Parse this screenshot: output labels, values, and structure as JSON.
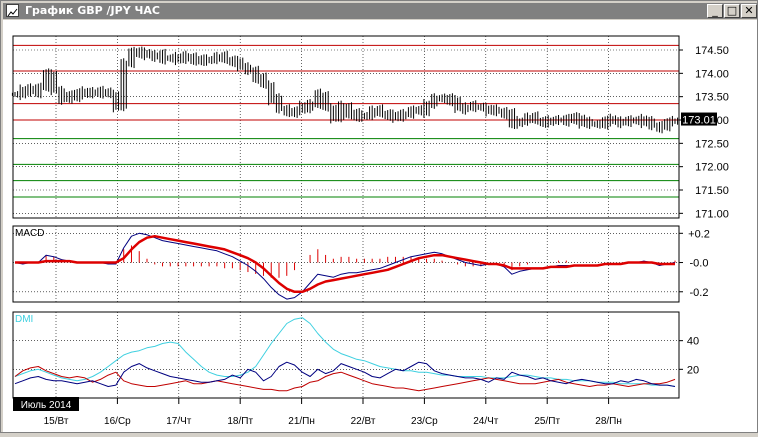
{
  "window": {
    "title": "График GBP /JPY ЧАС",
    "buttons": {
      "minimize": "_",
      "maximize": "□",
      "close": "✕"
    }
  },
  "colors": {
    "background": "#ffffff",
    "price_bars": "#000000",
    "resistance": "#c00000",
    "support": "#008000",
    "macd": "#000080",
    "macd_signal": "#dd0000",
    "dmi_adx": "#3fd0e0",
    "dmi_plus": "#000080",
    "dmi_minus": "#c00000",
    "price_marker": "#000000"
  },
  "chart_data": [
    {
      "type": "line",
      "panel": "price",
      "title": "",
      "y_ticks": [
        "174.50",
        "174.00",
        "173.50",
        "173.00",
        "172.50",
        "172.00",
        "171.50",
        "171.00"
      ],
      "ylim": [
        170.9,
        174.8
      ],
      "last_price": "173.01",
      "horizontal_levels": {
        "red": [
          174.6,
          174.05,
          173.35,
          173.0
        ],
        "green": [
          172.6,
          172.05,
          171.7,
          171.35
        ]
      },
      "series": [
        {
          "values": [
            173.55,
            173.65,
            173.6,
            173.7,
            174.0,
            173.62,
            173.45,
            173.5,
            173.6,
            173.55,
            173.62,
            173.58,
            173.55,
            173.3,
            174.2,
            174.48,
            174.42,
            174.38,
            174.4,
            174.3,
            174.35,
            174.3,
            174.35,
            174.3,
            174.25,
            174.32,
            174.35,
            174.3,
            174.25,
            174.15,
            174.05,
            173.9,
            173.75,
            173.45,
            173.25,
            173.15,
            173.2,
            173.28,
            173.35,
            173.55,
            173.25,
            173.05,
            173.28,
            173.15,
            173.05,
            173.12,
            173.2,
            173.15,
            173.1,
            173.05,
            173.15,
            173.2,
            173.18,
            173.35,
            173.45,
            173.48,
            173.4,
            173.25,
            173.28,
            173.3,
            173.25,
            173.2,
            173.18,
            173.15,
            172.9,
            173.0,
            173.05,
            173.0,
            172.95,
            172.98,
            173.02,
            172.98,
            173.05,
            172.95,
            172.92,
            172.9,
            173.0,
            172.96,
            172.98,
            172.96,
            173.02,
            172.95,
            172.88,
            172.85,
            172.95,
            173.0
          ]
        }
      ]
    },
    {
      "type": "line",
      "panel": "macd",
      "title": "MACD",
      "y_ticks": [
        "+0.2",
        "-0.0",
        "-0.2"
      ],
      "ylim": [
        -0.27,
        0.25
      ],
      "series": [
        {
          "values": [
            0.0,
            -0.01,
            0.0,
            0.0,
            0.05,
            0.04,
            0.02,
            0.01,
            0.0,
            0.0,
            0.0,
            0.0,
            -0.01,
            -0.01,
            0.1,
            0.18,
            0.2,
            0.19,
            0.17,
            0.15,
            0.14,
            0.13,
            0.12,
            0.11,
            0.1,
            0.09,
            0.08,
            0.06,
            0.04,
            0.01,
            -0.02,
            -0.06,
            -0.11,
            -0.17,
            -0.22,
            -0.25,
            -0.24,
            -0.2,
            -0.14,
            -0.08,
            -0.09,
            -0.1,
            -0.08,
            -0.07,
            -0.07,
            -0.06,
            -0.05,
            -0.04,
            -0.02,
            0.0,
            0.02,
            0.04,
            0.05,
            0.06,
            0.07,
            0.06,
            0.04,
            0.02,
            0.0,
            -0.01,
            -0.02,
            -0.01,
            -0.01,
            -0.03,
            -0.08,
            -0.06,
            -0.05,
            -0.04,
            -0.04,
            -0.03,
            -0.02,
            -0.02,
            -0.02,
            -0.02,
            -0.02,
            -0.02,
            -0.01,
            -0.01,
            -0.01,
            0.0,
            0.0,
            0.01,
            0.0,
            -0.02,
            -0.01,
            0.0
          ]
        },
        {
          "values": [
            0.0,
            0.0,
            0.0,
            0.0,
            0.01,
            0.01,
            0.01,
            0.01,
            0.0,
            0.0,
            0.0,
            0.0,
            0.0,
            0.0,
            0.03,
            0.09,
            0.14,
            0.17,
            0.18,
            0.17,
            0.16,
            0.15,
            0.14,
            0.13,
            0.12,
            0.11,
            0.1,
            0.09,
            0.07,
            0.05,
            0.03,
            0.0,
            -0.04,
            -0.09,
            -0.14,
            -0.18,
            -0.2,
            -0.2,
            -0.18,
            -0.15,
            -0.13,
            -0.12,
            -0.11,
            -0.1,
            -0.09,
            -0.08,
            -0.07,
            -0.06,
            -0.05,
            -0.03,
            -0.01,
            0.01,
            0.03,
            0.04,
            0.05,
            0.05,
            0.04,
            0.03,
            0.02,
            0.01,
            0.0,
            -0.01,
            -0.01,
            -0.02,
            -0.04,
            -0.04,
            -0.04,
            -0.04,
            -0.04,
            -0.03,
            -0.03,
            -0.03,
            -0.02,
            -0.02,
            -0.02,
            -0.02,
            -0.01,
            -0.01,
            -0.01,
            0.0,
            0.0,
            0.0,
            0.0,
            -0.01,
            -0.01,
            -0.01
          ]
        }
      ]
    },
    {
      "type": "line",
      "panel": "dmi",
      "title": "DMI",
      "y_ticks": [
        "40",
        "20"
      ],
      "ylim": [
        0,
        60
      ],
      "series": [
        {
          "values": [
            15,
            17,
            19,
            20,
            18,
            16,
            14,
            13,
            12,
            13,
            15,
            18,
            22,
            26,
            30,
            32,
            33,
            35,
            36,
            38,
            39,
            38,
            32,
            27,
            22,
            18,
            16,
            15,
            15,
            16,
            18,
            22,
            30,
            38,
            45,
            52,
            55,
            56,
            52,
            45,
            39,
            34,
            31,
            29,
            27,
            26,
            24,
            22,
            21,
            20,
            19,
            19,
            18,
            18,
            17,
            16,
            16,
            15,
            15,
            15,
            15,
            14,
            14,
            14,
            15,
            16,
            16,
            15,
            14,
            14,
            13,
            13,
            12,
            12,
            12,
            11,
            11,
            11,
            10,
            10,
            10,
            10,
            9,
            9,
            9,
            8
          ]
        },
        {
          "values": [
            10,
            12,
            14,
            15,
            13,
            12,
            12,
            11,
            10,
            11,
            12,
            10,
            8,
            9,
            18,
            22,
            24,
            21,
            19,
            17,
            15,
            14,
            13,
            12,
            11,
            11,
            12,
            13,
            16,
            14,
            20,
            18,
            12,
            15,
            22,
            25,
            23,
            18,
            15,
            20,
            17,
            19,
            24,
            22,
            20,
            18,
            15,
            14,
            17,
            20,
            19,
            22,
            25,
            24,
            19,
            17,
            16,
            15,
            14,
            14,
            13,
            11,
            14,
            13,
            18,
            16,
            15,
            13,
            14,
            12,
            11,
            10,
            12,
            13,
            12,
            11,
            10,
            10,
            12,
            11,
            13,
            12,
            10,
            9,
            9,
            8
          ]
        },
        {
          "values": [
            15,
            19,
            21,
            22,
            19,
            17,
            15,
            14,
            15,
            14,
            11,
            13,
            16,
            18,
            12,
            10,
            9,
            8,
            8,
            9,
            10,
            11,
            12,
            10,
            10,
            11,
            12,
            11,
            10,
            9,
            8,
            7,
            6,
            6,
            5,
            5,
            7,
            8,
            11,
            12,
            15,
            17,
            18,
            16,
            14,
            12,
            10,
            9,
            8,
            7,
            7,
            6,
            5,
            6,
            7,
            8,
            9,
            10,
            11,
            12,
            13,
            14,
            13,
            12,
            11,
            10,
            10,
            10,
            11,
            12,
            13,
            11,
            10,
            9,
            8,
            9,
            9,
            10,
            9,
            8,
            9,
            10,
            10,
            10,
            11,
            13
          ]
        }
      ]
    }
  ],
  "x_axis": {
    "labels": [
      "15/Вт",
      "16/Ср",
      "17/Чт",
      "18/Пт",
      "21/Пн",
      "22/Вт",
      "23/Ср",
      "24/Чт",
      "25/Пт",
      "28/Пн"
    ],
    "period_label": "Июль 2014"
  }
}
